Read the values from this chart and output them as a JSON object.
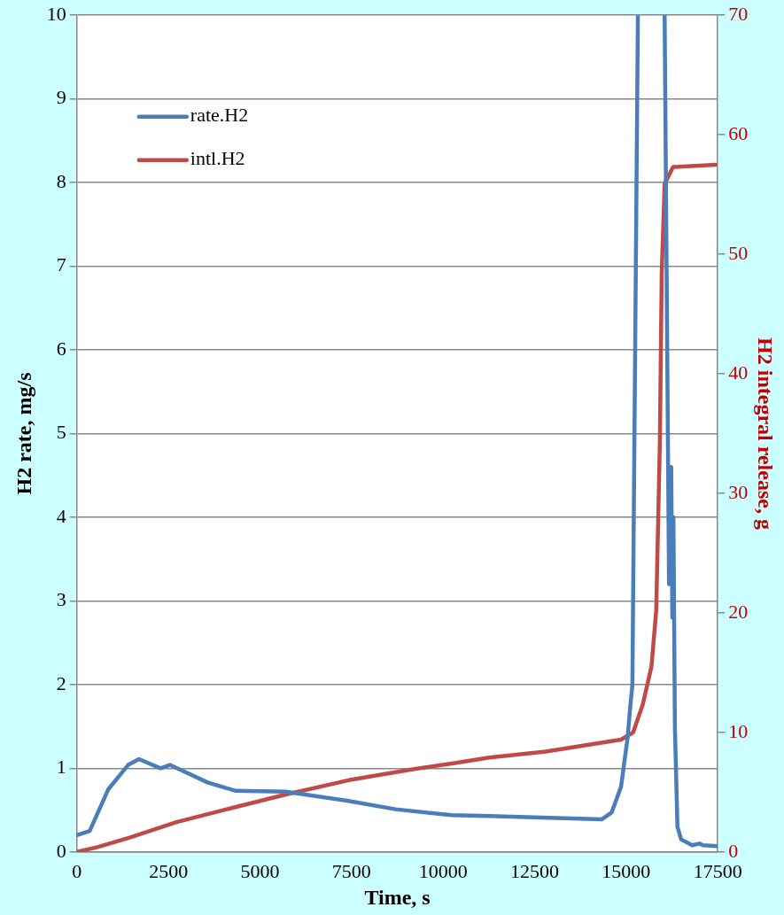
{
  "chart_data": {
    "type": "line",
    "xlabel": "Time, s",
    "ylabel": "H2 rate, mg/s",
    "y2label": "H2 integral release, g",
    "xlim": [
      0,
      17500
    ],
    "xticks": [
      0,
      2500,
      5000,
      7500,
      10000,
      12500,
      15000,
      17500
    ],
    "ylim": [
      0,
      10
    ],
    "yticks": [
      0,
      1,
      2,
      3,
      4,
      5,
      6,
      7,
      8,
      9,
      10
    ],
    "y2lim": [
      0,
      70
    ],
    "y2ticks": [
      0,
      10,
      20,
      30,
      40,
      50,
      60,
      70
    ],
    "grid": "y",
    "legend": "top left",
    "series": [
      {
        "name": "rate.H2",
        "color": "#4a7ebb",
        "x": [
          0,
          350,
          860,
          1400,
          1694,
          2284,
          2540,
          3570,
          4340,
          5700,
          7420,
          8700,
          9980,
          10240,
          11260,
          14340,
          14600,
          14860,
          15040,
          15110,
          15170,
          15320,
          15500,
          16050,
          16170,
          16230,
          16260,
          16290,
          16330,
          16400,
          16500,
          16800,
          17000,
          17100,
          17500
        ],
        "values": [
          0.2,
          0.25,
          0.75,
          1.04,
          1.11,
          1.0,
          1.04,
          0.83,
          0.73,
          0.72,
          0.61,
          0.51,
          0.45,
          0.44,
          0.43,
          0.39,
          0.47,
          0.78,
          1.37,
          1.73,
          2.0,
          10,
          null,
          10,
          3.2,
          4.6,
          2.8,
          4.0,
          1.5,
          0.3,
          0.15,
          0.08,
          0.1,
          0.08,
          0.07
        ]
      },
      {
        "name": "intl.H2",
        "color": "#be4b48",
        "axis": "y2",
        "x": [
          0,
          560,
          1440,
          2720,
          4000,
          5700,
          7420,
          9130,
          10240,
          11260,
          12800,
          14860,
          15190,
          15450,
          15690,
          15820,
          15920,
          15970,
          16050,
          16280,
          17450
        ],
        "values": [
          0,
          0.4,
          1.2,
          2.5,
          3.5,
          4.8,
          6.0,
          6.9,
          7.4,
          7.9,
          8.4,
          9.4,
          10.0,
          12.3,
          15.5,
          20.2,
          34.3,
          48.4,
          55.9,
          57.3,
          57.5
        ]
      }
    ]
  }
}
